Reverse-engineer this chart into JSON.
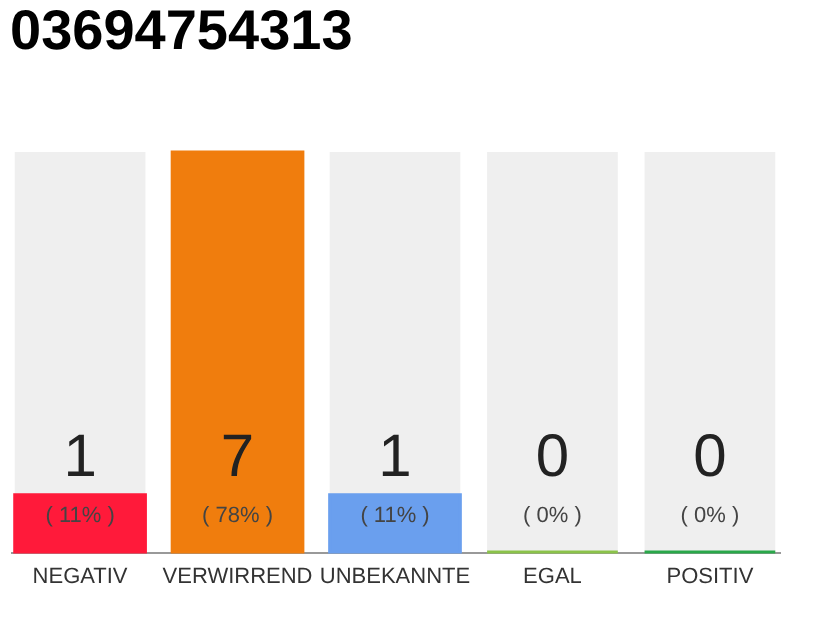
{
  "chart_data": {
    "type": "bar",
    "title": "03694754313",
    "categories": [
      "NEGATIV",
      "VERWIRREND",
      "UNBEKANNTE",
      "EGAL",
      "POSITIV"
    ],
    "values": [
      1,
      7,
      1,
      0,
      0
    ],
    "colors": [
      "#ff1a3a",
      "#f07d0d",
      "#6a9fee",
      "#8bc34a",
      "#2aa84a"
    ],
    "data_labels": true,
    "annotations": [
      "( 11% )",
      "( 78% )",
      "( 11% )",
      "( 0% )",
      "( 0% )"
    ]
  }
}
